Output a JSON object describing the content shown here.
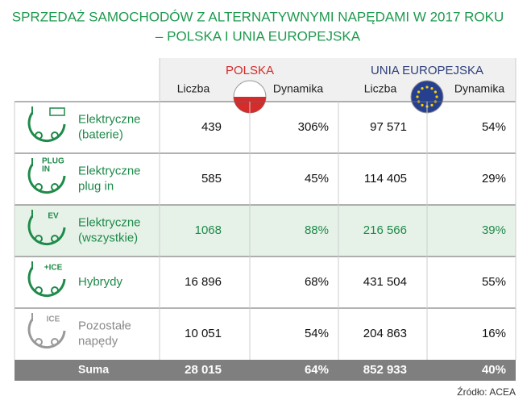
{
  "title_lines": [
    "SPRZEDAŻ SAMOCHODÓW Z ALTERNATYWNYMI NAPĘDAMI W 2017 ROKU",
    "– POLSKA I UNIA EUROPEJSKA"
  ],
  "table": {
    "groups": [
      "POLSKA",
      "UNIA EUROPEJSKA"
    ],
    "subheaders": [
      "Liczba",
      "Dynamika",
      "Liczba",
      "Dynamika"
    ],
    "rows": [
      {
        "label": [
          "Elektryczne",
          "(baterie)"
        ],
        "icon_text": [],
        "cells": [
          "439",
          "306%",
          "97 571",
          "54%"
        ]
      },
      {
        "label": [
          "Elektryczne",
          "plug in"
        ],
        "icon_text": [
          "PLUG",
          "IN"
        ],
        "cells": [
          "585",
          "45%",
          "114 405",
          "29%"
        ]
      },
      {
        "label": [
          "Elektryczne",
          "(wszystkie)"
        ],
        "icon_text": [
          "EV"
        ],
        "cells": [
          "1068",
          "88%",
          "216 566",
          "39%"
        ]
      },
      {
        "label": [
          "Hybrydy"
        ],
        "icon_text": [
          "+ICE"
        ],
        "cells": [
          "16 896",
          "68%",
          "431 504",
          "55%"
        ]
      },
      {
        "label": [
          "Pozostałe",
          "napędy"
        ],
        "icon_text": [
          "ICE"
        ],
        "cells": [
          "10 051",
          "54%",
          "204 863",
          "16%"
        ]
      }
    ],
    "total": {
      "label": "Suma",
      "cells": [
        "28 015",
        "64%",
        "852 933",
        "40%"
      ]
    }
  },
  "source": "Źródło: ACEA"
}
